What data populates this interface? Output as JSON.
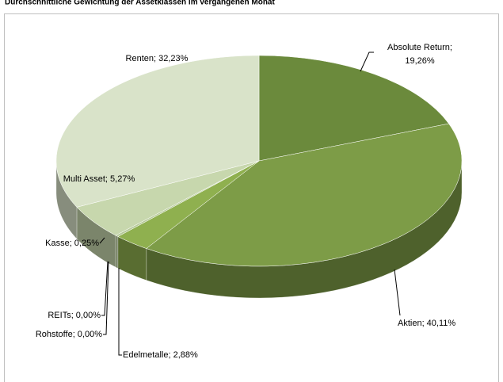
{
  "chart_data": {
    "type": "pie3d",
    "title": "Durchschnittliche Gewichtung der Assetklassen im vergangenen Monat",
    "labels": [
      [
        "Absolute Return;",
        "19,26%"
      ],
      [
        "Aktien; 40,11%"
      ],
      [
        "Edelmetalle; 2,88%"
      ],
      [
        "Rohstoffe; 0,00%"
      ],
      [
        "REITs; 0,00%"
      ],
      [
        "Kasse; 0,25%"
      ],
      [
        "Multi Asset; 5,27%"
      ],
      [
        "Renten; 32,23%"
      ]
    ],
    "values": [
      19.26,
      40.11,
      2.88,
      0,
      0,
      0.25,
      5.27,
      32.23
    ],
    "colors": [
      "#6b8a3c",
      "#7d9c47",
      "#8fb04f",
      "#9cb860",
      "#a8c070",
      "#b6c99a",
      "#c7d7ad",
      "#d9e3c9"
    ]
  }
}
